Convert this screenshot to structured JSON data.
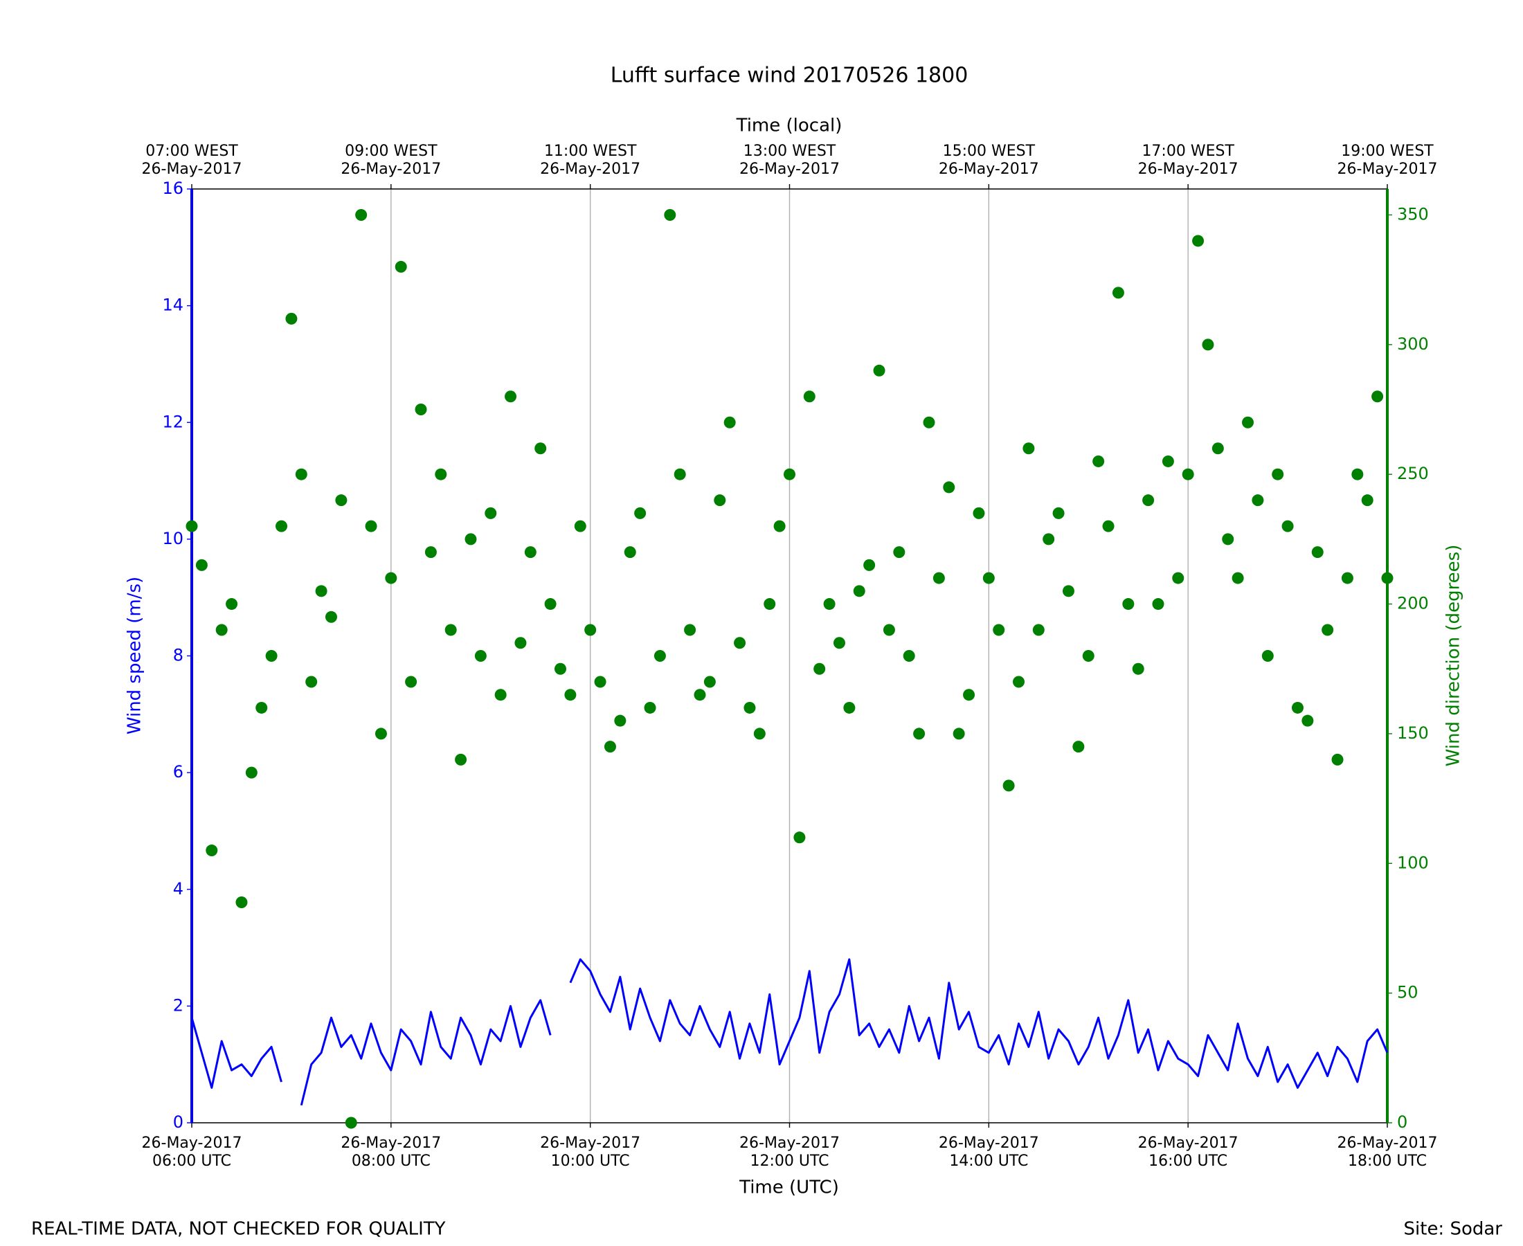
{
  "chart_data": {
    "type": "line",
    "title": "Lufft surface wind 20170526 1800",
    "xlabel": "Time (UTC)",
    "x2label": "Time (local)",
    "ylabel": "Wind speed (m/s)",
    "y2label": "Wind direction (degrees)",
    "footer_left": "REAL-TIME DATA, NOT CHECKED FOR QUALITY",
    "footer_right": "Site: Sodar",
    "grid": true,
    "xlim": [
      6,
      18
    ],
    "xticks": [
      {
        "value": 6,
        "label": [
          "26-May-2017",
          "06:00 UTC"
        ]
      },
      {
        "value": 8,
        "label": [
          "26-May-2017",
          "08:00 UTC"
        ]
      },
      {
        "value": 10,
        "label": [
          "26-May-2017",
          "10:00 UTC"
        ]
      },
      {
        "value": 12,
        "label": [
          "26-May-2017",
          "12:00 UTC"
        ]
      },
      {
        "value": 14,
        "label": [
          "26-May-2017",
          "14:00 UTC"
        ]
      },
      {
        "value": 16,
        "label": [
          "26-May-2017",
          "16:00 UTC"
        ]
      },
      {
        "value": 18,
        "label": [
          "26-May-2017",
          "18:00 UTC"
        ]
      }
    ],
    "x2ticks": [
      {
        "value": 6,
        "label": [
          "07:00 WEST",
          "26-May-2017"
        ]
      },
      {
        "value": 8,
        "label": [
          "09:00 WEST",
          "26-May-2017"
        ]
      },
      {
        "value": 10,
        "label": [
          "11:00 WEST",
          "26-May-2017"
        ]
      },
      {
        "value": 12,
        "label": [
          "13:00 WEST",
          "26-May-2017"
        ]
      },
      {
        "value": 14,
        "label": [
          "15:00 WEST",
          "26-May-2017"
        ]
      },
      {
        "value": 16,
        "label": [
          "17:00 WEST",
          "26-May-2017"
        ]
      },
      {
        "value": 18,
        "label": [
          "19:00 WEST",
          "26-May-2017"
        ]
      }
    ],
    "ylim": [
      0,
      16
    ],
    "yticks": [
      0,
      2,
      4,
      6,
      8,
      10,
      12,
      14,
      16
    ],
    "y2lim": [
      0,
      360
    ],
    "y2ticks": [
      0,
      50,
      100,
      150,
      200,
      250,
      300,
      350
    ],
    "x": [
      6.0,
      6.1,
      6.2,
      6.3,
      6.4,
      6.5,
      6.6,
      6.7,
      6.8,
      6.9,
      7.0,
      7.1,
      7.2,
      7.3,
      7.4,
      7.5,
      7.6,
      7.7,
      7.8,
      7.9,
      8.0,
      8.1,
      8.2,
      8.3,
      8.4,
      8.5,
      8.6,
      8.7,
      8.8,
      8.9,
      9.0,
      9.1,
      9.2,
      9.3,
      9.4,
      9.5,
      9.6,
      9.7,
      9.8,
      9.9,
      10.0,
      10.1,
      10.2,
      10.3,
      10.4,
      10.5,
      10.6,
      10.7,
      10.8,
      10.9,
      11.0,
      11.1,
      11.2,
      11.3,
      11.4,
      11.5,
      11.6,
      11.7,
      11.8,
      11.9,
      12.0,
      12.1,
      12.2,
      12.3,
      12.4,
      12.5,
      12.6,
      12.7,
      12.8,
      12.9,
      13.0,
      13.1,
      13.2,
      13.3,
      13.4,
      13.5,
      13.6,
      13.7,
      13.8,
      13.9,
      14.0,
      14.1,
      14.2,
      14.3,
      14.4,
      14.5,
      14.6,
      14.7,
      14.8,
      14.9,
      15.0,
      15.1,
      15.2,
      15.3,
      15.4,
      15.5,
      15.6,
      15.7,
      15.8,
      15.9,
      16.0,
      16.1,
      16.2,
      16.3,
      16.4,
      16.5,
      16.6,
      16.7,
      16.8,
      16.9,
      17.0,
      17.1,
      17.2,
      17.3,
      17.4,
      17.5,
      17.6,
      17.7,
      17.8,
      17.9,
      18.0
    ],
    "series": [
      {
        "kind": "line",
        "axis": "y",
        "color": "#0000ff",
        "values": [
          1.8,
          1.2,
          0.6,
          1.4,
          0.9,
          1.0,
          0.8,
          1.1,
          1.3,
          0.7,
          null,
          0.3,
          1.0,
          1.2,
          1.8,
          1.3,
          1.5,
          1.1,
          1.7,
          1.2,
          0.9,
          1.6,
          1.4,
          1.0,
          1.9,
          1.3,
          1.1,
          1.8,
          1.5,
          1.0,
          1.6,
          1.4,
          2.0,
          1.3,
          1.8,
          2.1,
          1.5,
          null,
          2.4,
          2.8,
          2.6,
          2.2,
          1.9,
          2.5,
          1.6,
          2.3,
          1.8,
          1.4,
          2.1,
          1.7,
          1.5,
          2.0,
          1.6,
          1.3,
          1.9,
          1.1,
          1.7,
          1.2,
          2.2,
          1.0,
          1.4,
          1.8,
          2.6,
          1.2,
          1.9,
          2.2,
          2.8,
          1.5,
          1.7,
          1.3,
          1.6,
          1.2,
          2.0,
          1.4,
          1.8,
          1.1,
          2.4,
          1.6,
          1.9,
          1.3,
          1.2,
          1.5,
          1.0,
          1.7,
          1.3,
          1.9,
          1.1,
          1.6,
          1.4,
          1.0,
          1.3,
          1.8,
          1.1,
          1.5,
          2.1,
          1.2,
          1.6,
          0.9,
          1.4,
          1.1,
          1.0,
          0.8,
          1.5,
          1.2,
          0.9,
          1.7,
          1.1,
          0.8,
          1.3,
          0.7,
          1.0,
          0.6,
          0.9,
          1.2,
          0.8,
          1.3,
          1.1,
          0.7,
          1.4,
          1.6,
          1.2
        ]
      },
      {
        "kind": "scatter",
        "axis": "y2",
        "color": "#008000",
        "values": [
          230,
          215,
          105,
          190,
          200,
          85,
          135,
          160,
          180,
          230,
          310,
          250,
          170,
          205,
          195,
          240,
          0,
          350,
          230,
          150,
          210,
          330,
          170,
          275,
          220,
          250,
          190,
          140,
          225,
          180,
          235,
          165,
          280,
          185,
          220,
          260,
          200,
          175,
          165,
          230,
          190,
          170,
          145,
          155,
          220,
          235,
          160,
          180,
          350,
          250,
          190,
          165,
          170,
          240,
          270,
          185,
          160,
          150,
          200,
          230,
          250,
          110,
          280,
          175,
          200,
          185,
          160,
          205,
          215,
          290,
          190,
          220,
          180,
          150,
          270,
          210,
          245,
          150,
          165,
          235,
          210,
          190,
          130,
          170,
          260,
          190,
          225,
          235,
          205,
          145,
          180,
          255,
          230,
          320,
          200,
          175,
          240,
          200,
          255,
          210,
          250,
          340,
          300,
          260,
          225,
          210,
          270,
          240,
          180,
          250,
          230,
          160,
          155,
          220,
          190,
          140,
          210,
          250,
          240,
          280,
          210
        ]
      }
    ]
  }
}
